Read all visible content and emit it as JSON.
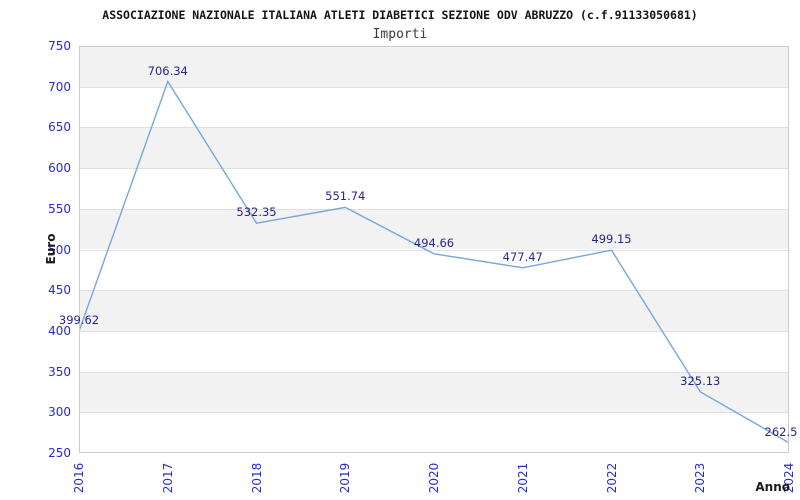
{
  "chart_data": {
    "type": "line",
    "title": "ASSOCIAZIONE NAZIONALE ITALIANA ATLETI DIABETICI SEZIONE ODV ABRUZZO (c.f.91133050681)",
    "subtitle": "Importi",
    "xlabel": "Anno",
    "ylabel": "Euro",
    "x": [
      "2016",
      "2017",
      "2018",
      "2019",
      "2020",
      "2021",
      "2022",
      "2023",
      "2024"
    ],
    "series": [
      {
        "name": "Importi",
        "values": [
          399.62,
          706.34,
          532.35,
          551.74,
          494.66,
          477.47,
          499.15,
          325.13,
          262.5
        ]
      }
    ],
    "point_labels": [
      "399.62",
      "706.34",
      "532.35",
      "551.74",
      "494.66",
      "477.47",
      "499.15",
      "325.13",
      "262.5"
    ],
    "ylim": [
      250,
      750
    ],
    "ytick_step": 50,
    "grid": "horizontal-bands-alternating",
    "legend": "none",
    "colors": {
      "line": "#79a7da",
      "tick_label": "#2a2ace",
      "data_label": "#26268c",
      "band_gray": "#f2f2f2",
      "band_white": "#ffffff",
      "gridline": "#e0e0e0",
      "border": "#cbcbcb",
      "axis_title": "#1a1a1a",
      "title": "#141414"
    }
  }
}
